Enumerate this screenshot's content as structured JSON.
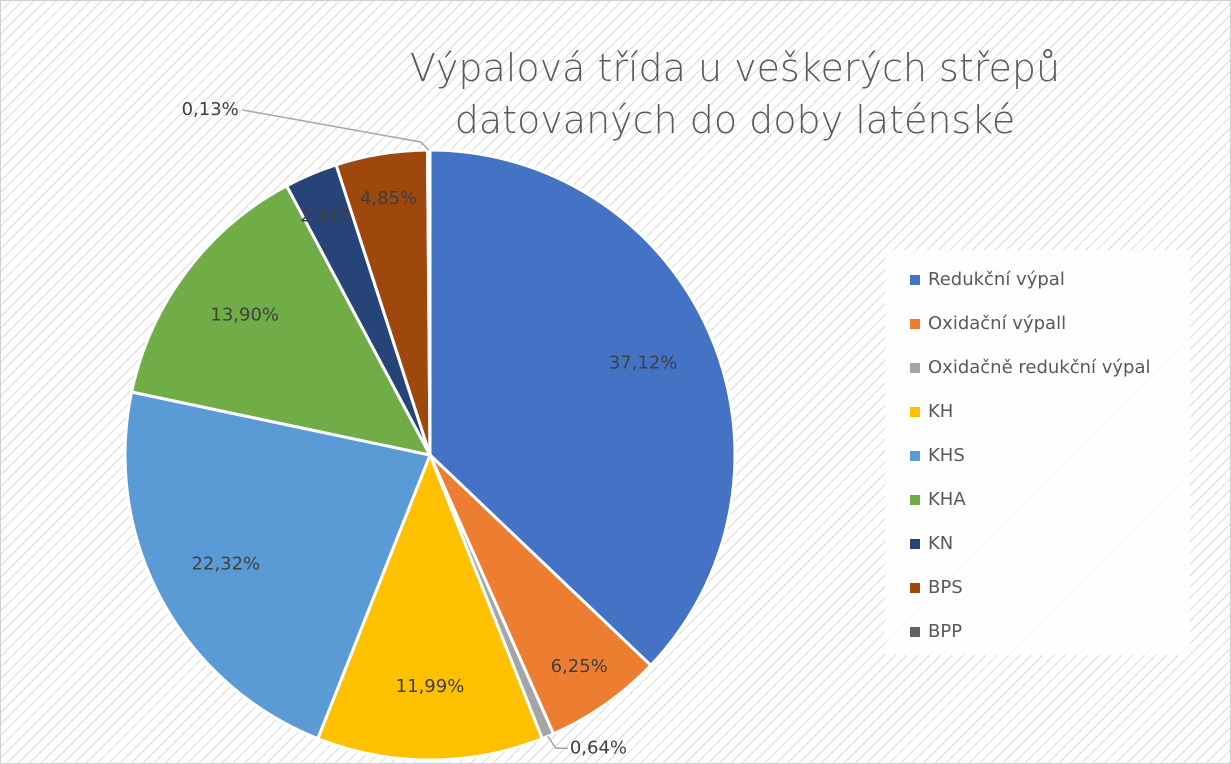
{
  "chart_data": {
    "type": "pie",
    "title": "Výpalová třída u veškerých střepů datovaných do doby laténské",
    "categories": [
      "Redukční výpal",
      "Oxidační výpall",
      "Oxidačně redukční výpal",
      "KH",
      "KHS",
      "KHA",
      "KN",
      "BPS",
      "BPP"
    ],
    "values": [
      37.12,
      6.25,
      0.64,
      11.99,
      22.32,
      13.9,
      2.81,
      4.85,
      0.13
    ],
    "value_labels": [
      "37,12%",
      "6,25%",
      "0,64%",
      "11,99%",
      "22,32%",
      "13,90%",
      "2,81%",
      "4,85%",
      "0,13%"
    ],
    "colors": [
      "#4472c4",
      "#ed7d31",
      "#a5a5a5",
      "#ffc000",
      "#5b9bd5",
      "#70ad47",
      "#264478",
      "#9e480e",
      "#636363"
    ],
    "legend": "right"
  }
}
